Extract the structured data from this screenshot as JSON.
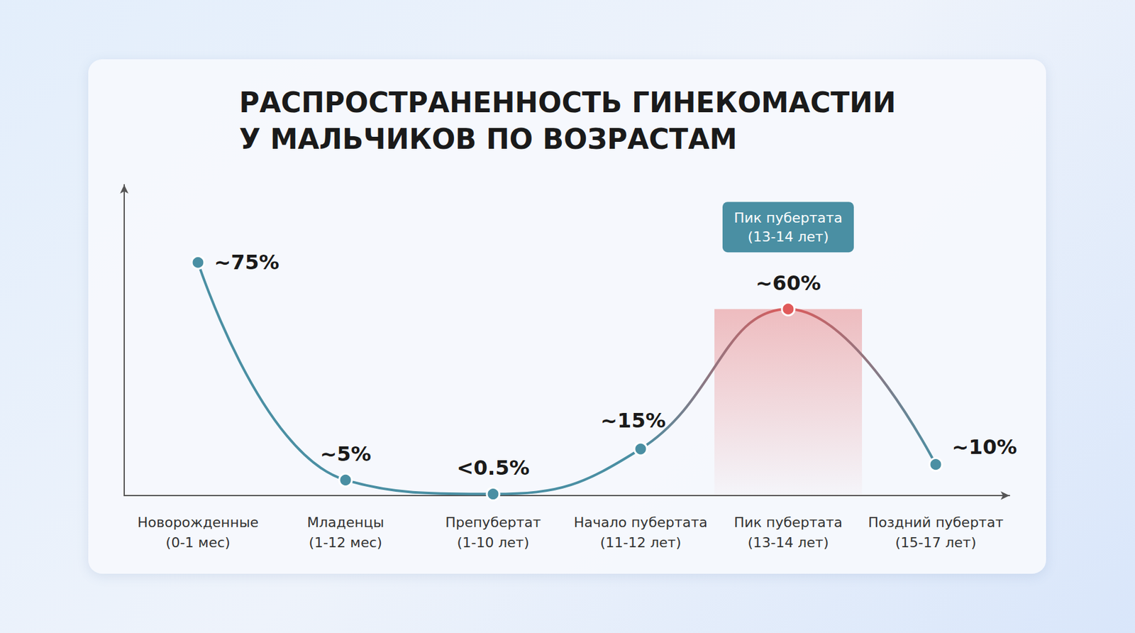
{
  "chart_data": {
    "type": "line",
    "title": "РАСПРОСТРАНЕННОСТЬ ГИНЕКОМАСТИИ\nУ МАЛЬЧИКОВ ПО ВОЗРАСТАМ",
    "categories": [
      "Новорожденные\n(0-1 мес)",
      "Младенцы\n(1-12 мес)",
      "Препубертат\n(1-10 лет)",
      "Начало пубертата\n(11-12 лет)",
      "Пик пубертата\n(13-14 лет)",
      "Поздний пубертат\n(15-17 лет)"
    ],
    "values": [
      75,
      5,
      0.5,
      15,
      60,
      10
    ],
    "value_labels": [
      "~75%",
      "~5%",
      "<0.5%",
      "~15%",
      "~60%",
      "~10%"
    ],
    "colors": [
      "#4a8fa3",
      "#4a8fa3",
      "#4a8fa3",
      "#4a8fa3",
      "#e05a5a",
      "#4a8fa3"
    ],
    "marker": "circle",
    "line_style": "solid",
    "ylim": [
      0,
      100
    ],
    "grid": false,
    "data_labels": true,
    "tick_labels": "x",
    "annotations": [
      {
        "text": "Пик пубертата\n(13-14 лет)",
        "at": "Пик пубертата\n(13-14 лет)"
      }
    ]
  }
}
